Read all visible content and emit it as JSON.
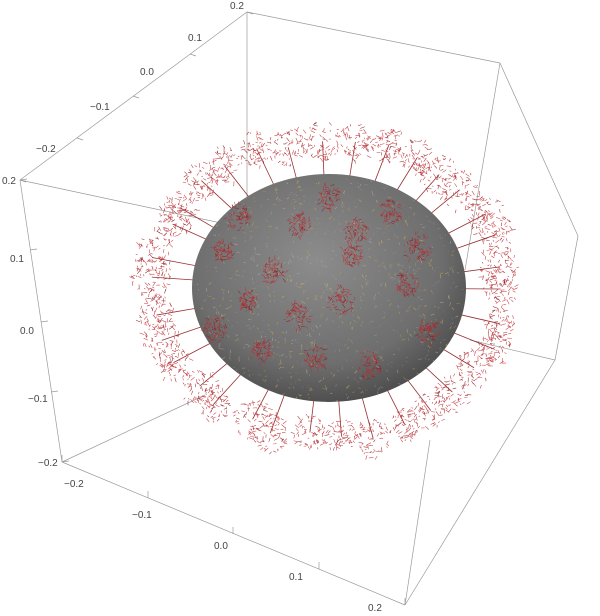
{
  "chart_data": {
    "type": "3d-plot",
    "axes": {
      "left_vertical": {
        "ticks": [
          "0.2",
          "0.1",
          "0.0",
          "−0.1",
          "−0.2"
        ]
      },
      "top_back": {
        "ticks": [
          "0.2",
          "0.1",
          "0.0",
          "−0.1",
          "−0.2"
        ]
      },
      "bottom_front": {
        "ticks": [
          "−0.2",
          "−0.1",
          "0.0",
          "0.1",
          "0.2"
        ]
      }
    },
    "range": [
      -0.2,
      0.2
    ],
    "boxed": true,
    "sphere_color": "#6e6e6e",
    "sphere_speckle_colors": [
      "#c8a84a",
      "#d2b25a",
      "#8a8a9a",
      "#b0b0b8"
    ],
    "spike_color": "#c0282e",
    "spike_dark_color": "#8a1a1e",
    "spike_count": 52
  }
}
